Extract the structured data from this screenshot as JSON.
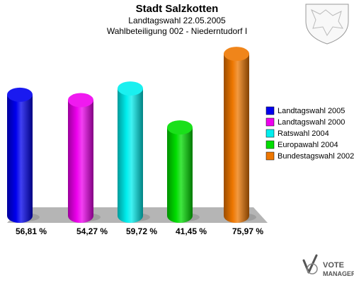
{
  "title": "Stadt Salzkotten",
  "subtitle1": "Landtagswahl 22.05.2005",
  "subtitle2": "Wahlbeteiligung 002 - Niederntudorf I",
  "branding": {
    "line1": "VOTE",
    "line2": "MANAGER",
    "icons": [
      "coat-of-arms-icon",
      "vote-manager-logo-icon"
    ]
  },
  "chart_data": {
    "type": "bar",
    "categories": [
      "Landtagswahl 2005",
      "Landtagswahl 2000",
      "Ratswahl 2004",
      "Europawahl 2004",
      "Bundestagswahl 2002"
    ],
    "values": [
      56.81,
      54.27,
      59.72,
      41.45,
      75.97
    ],
    "labels": [
      "56,81 %",
      "54,27 %",
      "59,72 %",
      "41,45 %",
      "75,97 %"
    ],
    "colors": [
      "#0000ee",
      "#ee00ee",
      "#00eeee",
      "#00dd00",
      "#ee7700"
    ],
    "ylim": [
      0,
      80
    ],
    "grid": false,
    "legend_position": "right"
  }
}
